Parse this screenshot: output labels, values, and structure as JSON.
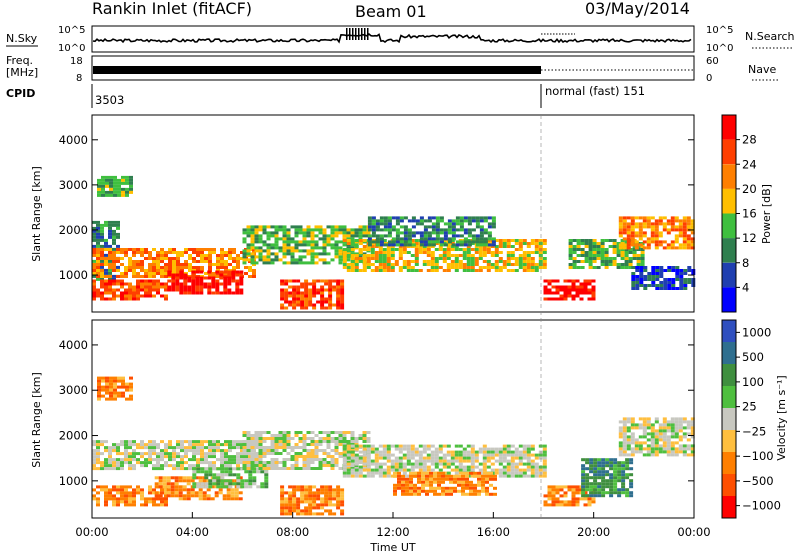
{
  "header": {
    "station": "Rankin Inlet (fitACF)",
    "beam": "Beam 01",
    "date": "03/May/2014"
  },
  "noise_panel": {
    "left_label": "N.Sky",
    "right_label": "N.Search",
    "left_ticks": [
      "10^5",
      "10^0"
    ],
    "right_ticks": [
      "10^5",
      "10^0"
    ]
  },
  "freq_panel": {
    "left_label_top": "Freq.",
    "left_label_bottom": "[MHz]",
    "right_label": "Nave",
    "left_ticks": [
      "18",
      "8"
    ],
    "right_ticks": [
      "60",
      "0"
    ]
  },
  "cpid_panel": {
    "label": "CPID",
    "segments": [
      {
        "name": "3503",
        "start_hour": 0
      },
      {
        "name": "normal (fast) 151",
        "start_hour": 18
      }
    ]
  },
  "colors": {
    "power": [
      "#0000ff",
      "#1f3fb0",
      "#2f7f4f",
      "#3fbf3f",
      "#ffbf00",
      "#ff7f00",
      "#ff3f00",
      "#ff0000"
    ],
    "velocity": [
      "#2f4fbf",
      "#2f6f8f",
      "#3f8f3f",
      "#4fbf3f",
      "#c8c8c0",
      "#ffbf3f",
      "#ff7f00",
      "#ff4f00",
      "#ff0000"
    ]
  },
  "chart_data": [
    {
      "type": "heatmap",
      "name": "Power",
      "xlabel": "",
      "ylabel": "Slant Range [km]",
      "xlim_hours": [
        0,
        24
      ],
      "ylim_km": [
        180,
        4550
      ],
      "yticks": [
        "1000",
        "2000",
        "3000",
        "4000"
      ],
      "colorbar": {
        "label": "Power [dB]",
        "range": [
          0,
          32
        ],
        "ticks": [
          "4",
          "8",
          "12",
          "16",
          "20",
          "24",
          "28"
        ]
      },
      "bands": [
        {
          "h0": 0.0,
          "h1": 1.0,
          "r0": 900,
          "r1": 2200,
          "level": 2
        },
        {
          "h0": 0.0,
          "h1": 3.0,
          "r0": 500,
          "r1": 900,
          "level": 6
        },
        {
          "h0": 0.0,
          "h1": 6.5,
          "r0": 1000,
          "r1": 1600,
          "level": 5
        },
        {
          "h0": 3.0,
          "h1": 6.0,
          "r0": 600,
          "r1": 1100,
          "level": 7
        },
        {
          "h0": 6.0,
          "h1": 11.0,
          "r0": 1300,
          "r1": 2100,
          "level": 3
        },
        {
          "h0": 7.5,
          "h1": 10.0,
          "r0": 300,
          "r1": 900,
          "level": 6
        },
        {
          "h0": 10.0,
          "h1": 18.0,
          "r0": 1100,
          "r1": 1800,
          "level": 4
        },
        {
          "h0": 11.0,
          "h1": 16.0,
          "r0": 1700,
          "r1": 2300,
          "level": 2
        },
        {
          "h0": 18.0,
          "h1": 20.0,
          "r0": 500,
          "r1": 900,
          "level": 7
        },
        {
          "h0": 19.0,
          "h1": 22.0,
          "r0": 1200,
          "r1": 1800,
          "level": 3
        },
        {
          "h0": 21.0,
          "h1": 24.0,
          "r0": 1600,
          "r1": 2300,
          "level": 5
        },
        {
          "h0": 21.5,
          "h1": 24.0,
          "r0": 700,
          "r1": 1200,
          "level": 1
        },
        {
          "h0": 0.2,
          "h1": 1.5,
          "r0": 2800,
          "r1": 3200,
          "level": 3
        }
      ]
    },
    {
      "type": "heatmap",
      "name": "Velocity",
      "xlabel": "Time UT",
      "ylabel": "Slant Range [km]",
      "xlim_hours": [
        0,
        24
      ],
      "ylim_km": [
        180,
        4550
      ],
      "xticks": [
        "00:00",
        "04:00",
        "08:00",
        "12:00",
        "16:00",
        "20:00",
        "00:00"
      ],
      "yticks": [
        "1000",
        "2000",
        "3000",
        "4000"
      ],
      "colorbar": {
        "label": "Velocity [m s⁻¹]",
        "ticks": [
          "1000",
          "500",
          "100",
          "25",
          "−25",
          "−100",
          "−500",
          "−1000"
        ]
      },
      "bands": [
        {
          "h0": 0.0,
          "h1": 3.0,
          "r0": 500,
          "r1": 900,
          "level": 6
        },
        {
          "h0": 0.0,
          "h1": 6.5,
          "r0": 1300,
          "r1": 1900,
          "level": 4
        },
        {
          "h0": 2.5,
          "h1": 6.0,
          "r0": 600,
          "r1": 1100,
          "level": 6
        },
        {
          "h0": 4.0,
          "h1": 7.0,
          "r0": 900,
          "r1": 1300,
          "level": 3
        },
        {
          "h0": 6.0,
          "h1": 11.0,
          "r0": 1300,
          "r1": 2100,
          "level": 4
        },
        {
          "h0": 7.5,
          "h1": 10.0,
          "r0": 300,
          "r1": 900,
          "level": 6
        },
        {
          "h0": 10.0,
          "h1": 18.0,
          "r0": 1100,
          "r1": 1800,
          "level": 4
        },
        {
          "h0": 12.0,
          "h1": 16.0,
          "r0": 700,
          "r1": 1200,
          "level": 6
        },
        {
          "h0": 18.0,
          "h1": 20.0,
          "r0": 500,
          "r1": 900,
          "level": 6
        },
        {
          "h0": 19.5,
          "h1": 21.5,
          "r0": 700,
          "r1": 1500,
          "level": 2
        },
        {
          "h0": 21.0,
          "h1": 24.0,
          "r0": 1600,
          "r1": 2400,
          "level": 4
        },
        {
          "h0": 0.2,
          "h1": 1.5,
          "r0": 2800,
          "r1": 3300,
          "level": 6
        }
      ]
    }
  ]
}
